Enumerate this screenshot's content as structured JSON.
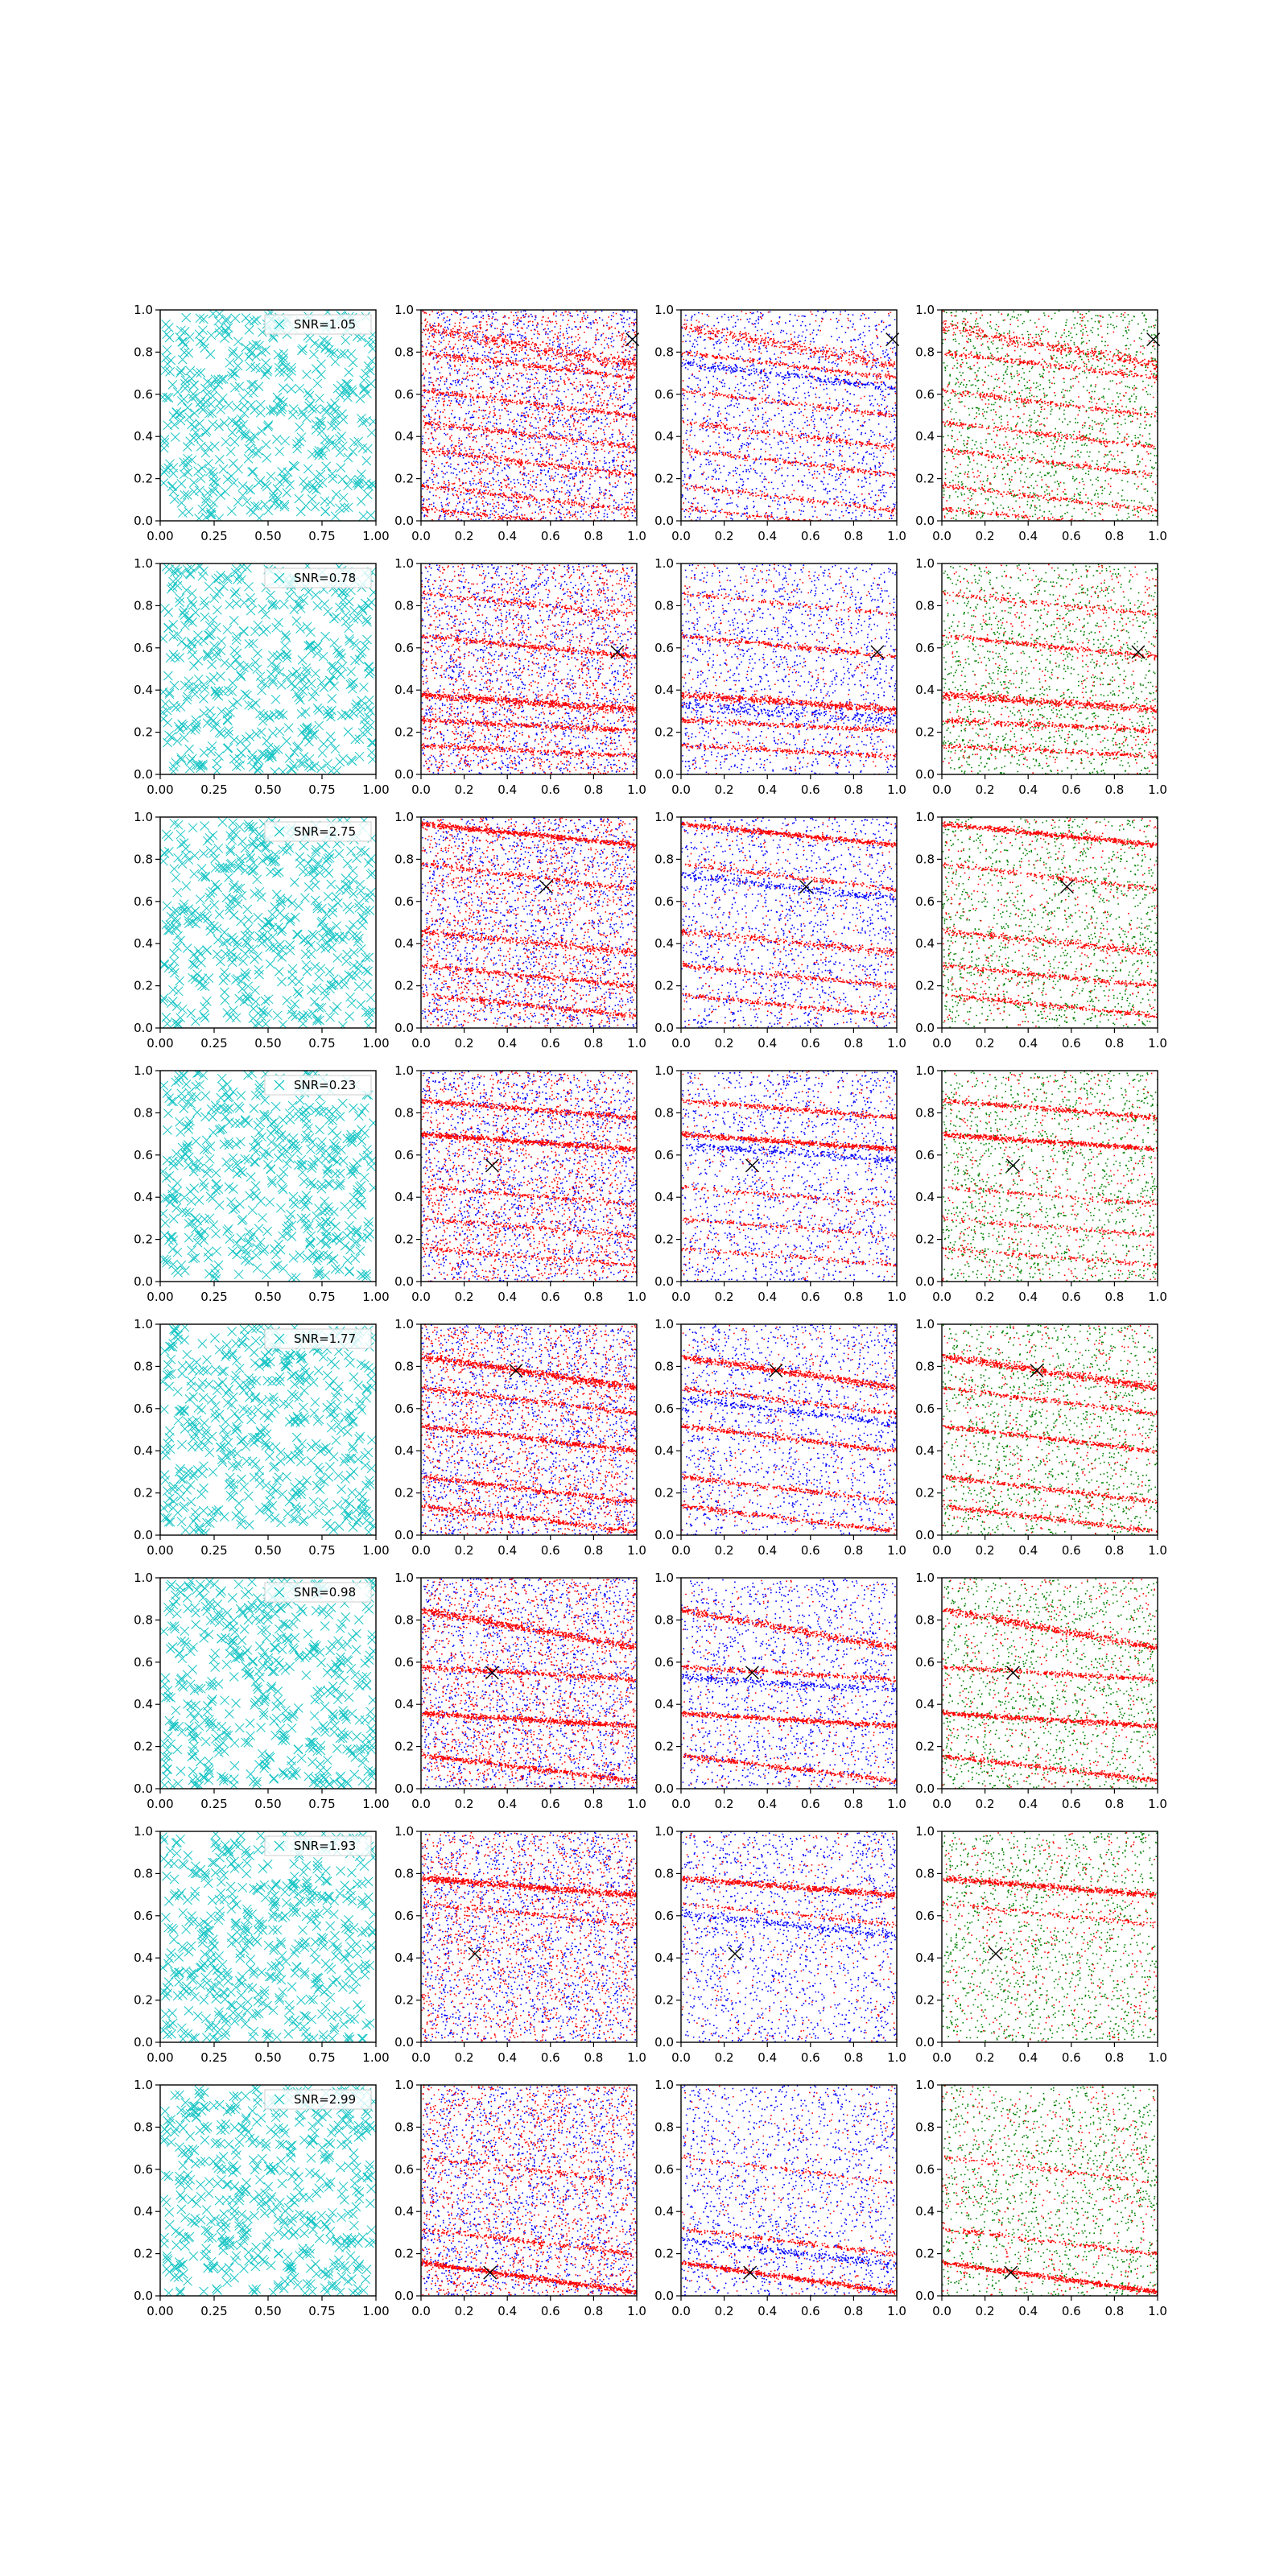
{
  "figure": {
    "rows": 8,
    "cols": 4
  },
  "colors": {
    "scatter_cyan": "#00BFBF",
    "signal_red": "#FF0000",
    "noise_blue": "#0000FF",
    "noise_green": "#008000",
    "marker_black": "#000000",
    "axis_black": "#000000",
    "background": "#ffffff"
  },
  "chart_data": [
    {
      "row": 1,
      "type": "scatter",
      "legend_label": "SNR=1.05",
      "legend_position": "upper right",
      "xlim": [
        0,
        1
      ],
      "ylim": [
        0,
        1
      ],
      "xticks": [
        "0.00",
        "0.25",
        "0.50",
        "0.75",
        "1.00"
      ],
      "yticks": [
        "0.0",
        "0.2",
        "0.4",
        "0.6",
        "0.8",
        "1.0"
      ],
      "streak_xticks": [
        "0.0",
        "0.2",
        "0.4",
        "0.6",
        "0.8",
        "1.0"
      ],
      "black_x_marker": [
        0.98,
        0.86
      ],
      "streaks": [
        {
          "intercept": 0.92,
          "slope": -0.18,
          "width": 0.05,
          "strength": 0.6
        },
        {
          "intercept": 0.8,
          "slope": -0.12,
          "width": 0.02,
          "strength": 0.4
        },
        {
          "intercept": 0.62,
          "slope": -0.12,
          "width": 0.02,
          "strength": 0.35
        },
        {
          "intercept": 0.47,
          "slope": -0.12,
          "width": 0.02,
          "strength": 0.35
        },
        {
          "intercept": 0.34,
          "slope": -0.12,
          "width": 0.02,
          "strength": 0.35
        },
        {
          "intercept": 0.17,
          "slope": -0.12,
          "width": 0.02,
          "strength": 0.3
        },
        {
          "intercept": 0.06,
          "slope": -0.1,
          "width": 0.02,
          "strength": 0.3
        }
      ]
    },
    {
      "row": 2,
      "type": "scatter",
      "legend_label": "SNR=0.78",
      "legend_position": "upper right",
      "xlim": [
        0,
        1
      ],
      "ylim": [
        0,
        1
      ],
      "xticks": [
        "0.00",
        "0.25",
        "0.50",
        "0.75",
        "1.00"
      ],
      "yticks": [
        "0.0",
        "0.2",
        "0.4",
        "0.6",
        "0.8",
        "1.0"
      ],
      "streak_xticks": [
        "0.0",
        "0.2",
        "0.4",
        "0.6",
        "0.8",
        "1.0"
      ],
      "black_x_marker": [
        0.91,
        0.58
      ],
      "streaks": [
        {
          "intercept": 0.66,
          "slope": -0.1,
          "width": 0.02,
          "strength": 0.5
        },
        {
          "intercept": 0.38,
          "slope": -0.07,
          "width": 0.03,
          "strength": 0.9
        },
        {
          "intercept": 0.26,
          "slope": -0.05,
          "width": 0.02,
          "strength": 0.5
        },
        {
          "intercept": 0.14,
          "slope": -0.05,
          "width": 0.02,
          "strength": 0.4
        },
        {
          "intercept": 0.86,
          "slope": -0.1,
          "width": 0.02,
          "strength": 0.25
        }
      ]
    },
    {
      "row": 3,
      "type": "scatter",
      "legend_label": "SNR=2.75",
      "legend_position": "upper right",
      "xlim": [
        0,
        1
      ],
      "ylim": [
        0,
        1
      ],
      "xticks": [
        "0.00",
        "0.25",
        "0.50",
        "0.75",
        "1.00"
      ],
      "yticks": [
        "0.0",
        "0.2",
        "0.4",
        "0.6",
        "0.8",
        "1.0"
      ],
      "streak_xticks": [
        "0.0",
        "0.2",
        "0.4",
        "0.6",
        "0.8",
        "1.0"
      ],
      "black_x_marker": [
        0.58,
        0.67
      ],
      "streaks": [
        {
          "intercept": 0.97,
          "slope": -0.1,
          "width": 0.02,
          "strength": 0.9
        },
        {
          "intercept": 0.78,
          "slope": -0.12,
          "width": 0.02,
          "strength": 0.35
        },
        {
          "intercept": 0.46,
          "slope": -0.1,
          "width": 0.03,
          "strength": 0.5
        },
        {
          "intercept": 0.3,
          "slope": -0.1,
          "width": 0.02,
          "strength": 0.45
        },
        {
          "intercept": 0.16,
          "slope": -0.1,
          "width": 0.02,
          "strength": 0.4
        }
      ]
    },
    {
      "row": 4,
      "type": "scatter",
      "legend_label": "SNR=0.23",
      "legend_position": "upper right",
      "xlim": [
        0,
        1
      ],
      "ylim": [
        0,
        1
      ],
      "xticks": [
        "0.00",
        "0.25",
        "0.50",
        "0.75",
        "1.00"
      ],
      "yticks": [
        "0.0",
        "0.2",
        "0.4",
        "0.6",
        "0.8",
        "1.0"
      ],
      "streak_xticks": [
        "0.0",
        "0.2",
        "0.4",
        "0.6",
        "0.8",
        "1.0"
      ],
      "black_x_marker": [
        0.33,
        0.55
      ],
      "streaks": [
        {
          "intercept": 0.86,
          "slope": -0.08,
          "width": 0.02,
          "strength": 0.6
        },
        {
          "intercept": 0.7,
          "slope": -0.07,
          "width": 0.02,
          "strength": 0.95
        },
        {
          "intercept": 0.45,
          "slope": -0.08,
          "width": 0.02,
          "strength": 0.25
        },
        {
          "intercept": 0.3,
          "slope": -0.08,
          "width": 0.02,
          "strength": 0.25
        },
        {
          "intercept": 0.16,
          "slope": -0.08,
          "width": 0.02,
          "strength": 0.25
        }
      ]
    },
    {
      "row": 5,
      "type": "scatter",
      "legend_label": "SNR=1.77",
      "legend_position": "upper right",
      "xlim": [
        0,
        1
      ],
      "ylim": [
        0,
        1
      ],
      "xticks": [
        "0.00",
        "0.25",
        "0.50",
        "0.75",
        "1.00"
      ],
      "yticks": [
        "0.0",
        "0.2",
        "0.4",
        "0.6",
        "0.8",
        "1.0"
      ],
      "streak_xticks": [
        "0.0",
        "0.2",
        "0.4",
        "0.6",
        "0.8",
        "1.0"
      ],
      "black_x_marker": [
        0.44,
        0.78
      ],
      "streaks": [
        {
          "intercept": 0.85,
          "slope": -0.15,
          "width": 0.03,
          "strength": 0.95
        },
        {
          "intercept": 0.7,
          "slope": -0.12,
          "width": 0.02,
          "strength": 0.4
        },
        {
          "intercept": 0.52,
          "slope": -0.12,
          "width": 0.02,
          "strength": 0.6
        },
        {
          "intercept": 0.28,
          "slope": -0.12,
          "width": 0.02,
          "strength": 0.5
        },
        {
          "intercept": 0.14,
          "slope": -0.12,
          "width": 0.02,
          "strength": 0.5
        }
      ]
    },
    {
      "row": 6,
      "type": "scatter",
      "legend_label": "SNR=0.98",
      "legend_position": "upper right",
      "xlim": [
        0,
        1
      ],
      "ylim": [
        0,
        1
      ],
      "xticks": [
        "0.00",
        "0.25",
        "0.50",
        "0.75",
        "1.00"
      ],
      "yticks": [
        "0.0",
        "0.2",
        "0.4",
        "0.6",
        "0.8",
        "1.0"
      ],
      "streak_xticks": [
        "0.0",
        "0.2",
        "0.4",
        "0.6",
        "0.8",
        "1.0"
      ],
      "black_x_marker": [
        0.33,
        0.55
      ],
      "streaks": [
        {
          "intercept": 0.85,
          "slope": -0.18,
          "width": 0.03,
          "strength": 0.8
        },
        {
          "intercept": 0.58,
          "slope": -0.06,
          "width": 0.02,
          "strength": 0.5
        },
        {
          "intercept": 0.36,
          "slope": -0.06,
          "width": 0.02,
          "strength": 0.85
        },
        {
          "intercept": 0.16,
          "slope": -0.12,
          "width": 0.02,
          "strength": 0.6
        }
      ]
    },
    {
      "row": 7,
      "type": "scatter",
      "legend_label": "SNR=1.93",
      "legend_position": "upper right",
      "xlim": [
        0,
        1
      ],
      "ylim": [
        0,
        1
      ],
      "xticks": [
        "0.00",
        "0.25",
        "0.50",
        "0.75",
        "1.00"
      ],
      "yticks": [
        "0.0",
        "0.2",
        "0.4",
        "0.6",
        "0.8",
        "1.0"
      ],
      "streak_xticks": [
        "0.0",
        "0.2",
        "0.4",
        "0.6",
        "0.8",
        "1.0"
      ],
      "black_x_marker": [
        0.25,
        0.42
      ],
      "streaks": [
        {
          "intercept": 0.78,
          "slope": -0.08,
          "width": 0.025,
          "strength": 0.95
        },
        {
          "intercept": 0.66,
          "slope": -0.1,
          "width": 0.02,
          "strength": 0.25
        }
      ]
    },
    {
      "row": 8,
      "type": "scatter",
      "legend_label": "SNR=2.99",
      "legend_position": "upper right",
      "xlim": [
        0,
        1
      ],
      "ylim": [
        0,
        1
      ],
      "xticks": [
        "0.00",
        "0.25",
        "0.50",
        "0.75",
        "1.00"
      ],
      "yticks": [
        "0.0",
        "0.2",
        "0.4",
        "0.6",
        "0.8",
        "1.0"
      ],
      "streak_xticks": [
        "0.0",
        "0.2",
        "0.4",
        "0.6",
        "0.8",
        "1.0"
      ],
      "black_x_marker": [
        0.32,
        0.11
      ],
      "streaks": [
        {
          "intercept": 0.16,
          "slope": -0.14,
          "width": 0.02,
          "strength": 0.95
        },
        {
          "intercept": 0.32,
          "slope": -0.12,
          "width": 0.02,
          "strength": 0.35
        },
        {
          "intercept": 0.66,
          "slope": -0.12,
          "width": 0.02,
          "strength": 0.2
        }
      ]
    }
  ]
}
